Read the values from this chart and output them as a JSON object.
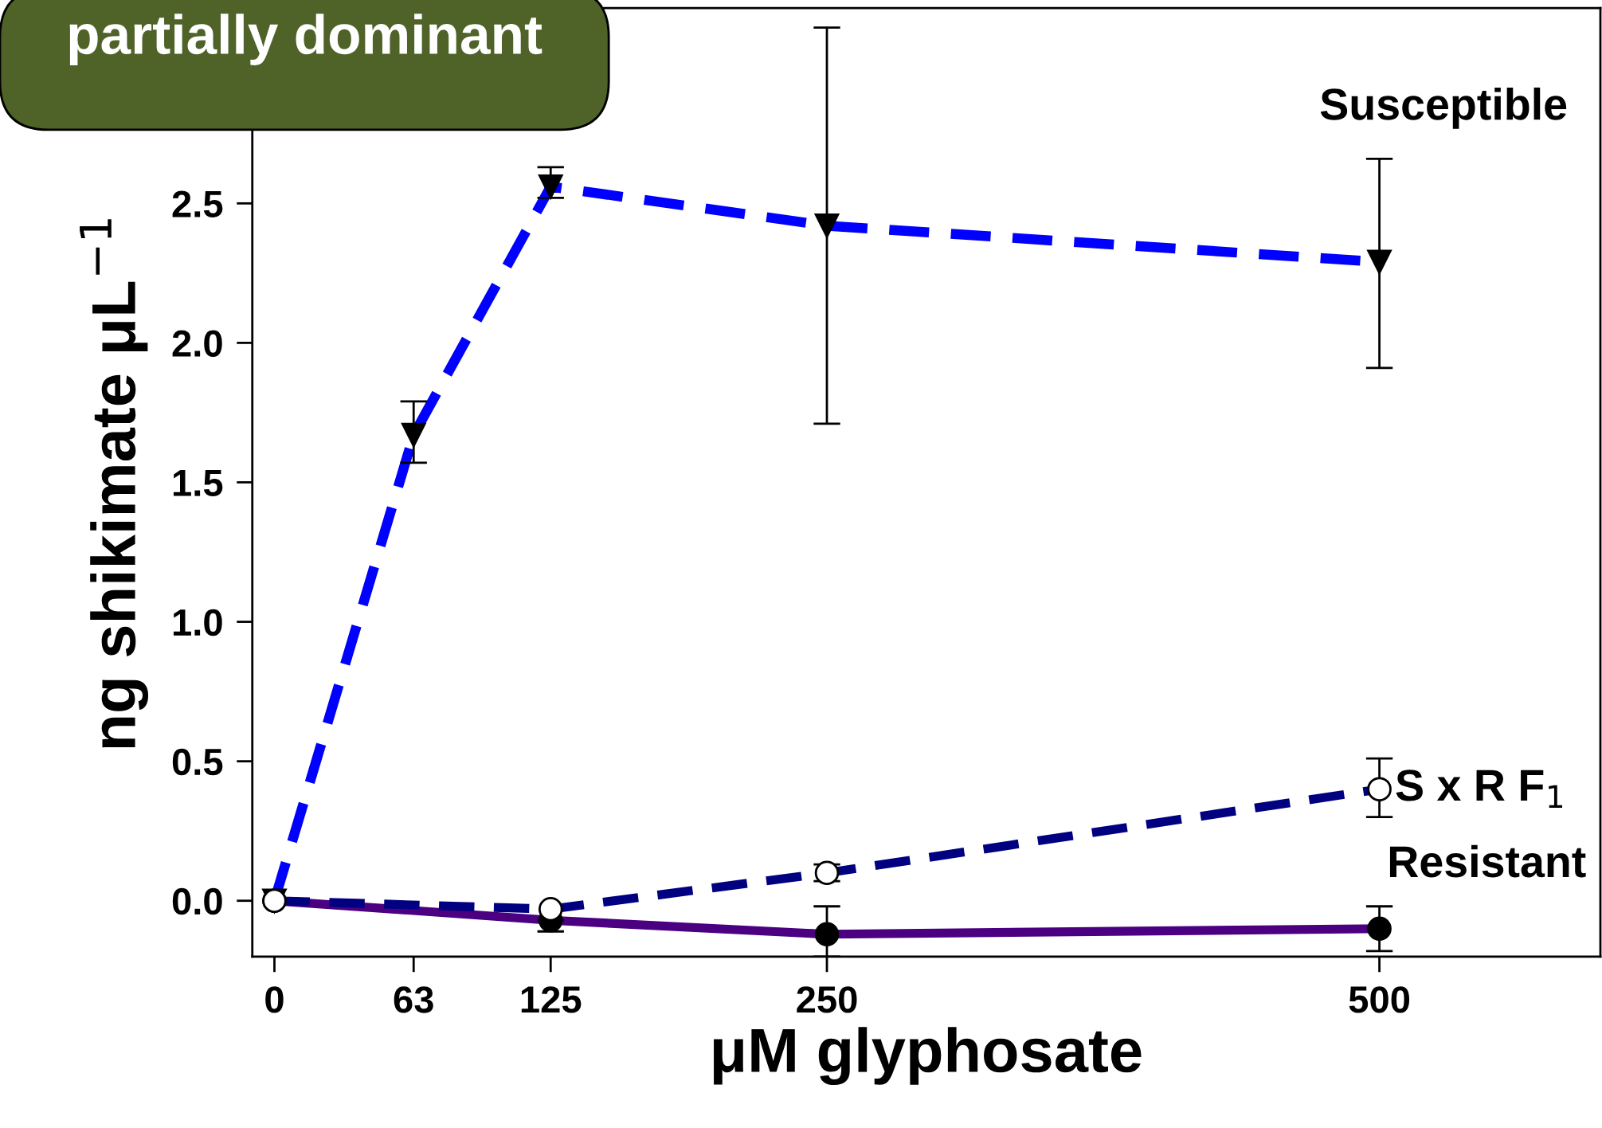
{
  "chart_data": {
    "type": "line",
    "title": "partially dominant",
    "xlabel": "μM glyphosate",
    "ylabel": "ng shikimate μL$^{−1}$",
    "x": [
      0,
      63,
      125,
      250,
      500
    ],
    "xlim": [
      -10,
      600
    ],
    "xticks": [
      0,
      63,
      125,
      250,
      500
    ],
    "ylim": [
      -0.2,
      3.2
    ],
    "yticks": [
      {
        "value": 0,
        "label": "0.0"
      },
      {
        "value": 0.5,
        "label": "0.5"
      },
      {
        "value": 1,
        "label": "1.0"
      },
      {
        "value": 1.5,
        "label": "1.5"
      },
      {
        "value": 2,
        "label": "2.0"
      },
      {
        "value": 2.5,
        "label": "2.5"
      }
    ],
    "grid": false,
    "legend": false,
    "series": [
      {
        "name": "Susceptible",
        "color": "#0000ff",
        "line_style": "dashed",
        "marker": "triangle",
        "values": [
          0,
          1.67,
          2.56,
          2.42,
          2.29
        ],
        "errors": [
          null,
          [
            1.57,
            1.79
          ],
          [
            2.52,
            2.63
          ],
          [
            1.71,
            3.13
          ],
          [
            1.91,
            2.66
          ]
        ]
      },
      {
        "name": "S x R F$_{1}$",
        "color": "#000080",
        "line_style": "dashed",
        "marker": "circle",
        "x": [
          0,
          125,
          250,
          500
        ],
        "values": [
          0,
          -0.03,
          0.1,
          0.4
        ],
        "errors": [
          null,
          null,
          [
            0.07,
            0.13
          ],
          [
            0.3,
            0.51
          ]
        ]
      },
      {
        "name": "Resistant",
        "color": "#4b0082",
        "line_style": "solid",
        "marker": "circle",
        "x": [
          0,
          125,
          250,
          500
        ],
        "values": [
          0,
          -0.07,
          -0.12,
          -0.1
        ],
        "errors": [
          null,
          [
            -0.11,
            -0.07
          ],
          [
            -0.2,
            -0.02
          ],
          [
            -0.18,
            -0.02
          ]
        ]
      }
    ]
  }
}
